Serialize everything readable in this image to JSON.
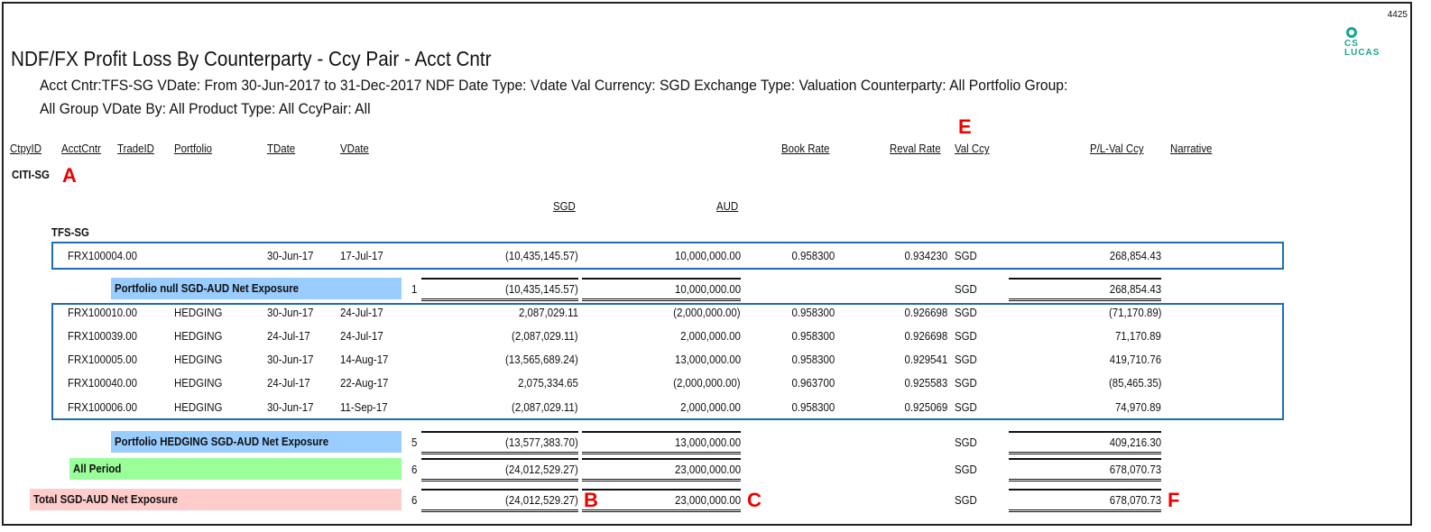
{
  "page_number": "4425",
  "logo": {
    "line1": "CS",
    "line2": "LUCAS",
    "color": "#1aa58f"
  },
  "title": "NDF/FX Profit Loss By Counterparty - Ccy Pair - Acct Cntr",
  "criteria": [
    "Acct Cntr:TFS-SG VDate: From  30-Jun-2017 to  31-Dec-2017  NDF Date Type: Vdate Val Currency: SGD Exchange Type: Valuation Counterparty: All Portfolio Group:",
    "All Group VDate By: All Product Type: All CcyPair: All"
  ],
  "headers": {
    "ctpy": "CtpyID",
    "acct": "AcctCntr",
    "trade": "TradeID",
    "portfolio": "Portfolio",
    "tdate": "TDate",
    "vdate": "VDate",
    "book": "Book Rate",
    "reval": "Reval Rate",
    "valccy": "Val Ccy",
    "pl": "P/L-Val Ccy",
    "narr": "Narrative"
  },
  "counterparty": "CITI-SG",
  "ccy1": "SGD",
  "ccy2": "AUD",
  "acct_cntr": "TFS-SG",
  "markers": {
    "a": "A",
    "b": "B",
    "c": "C",
    "e": "E",
    "f": "F"
  },
  "rows": [
    {
      "trade": "FRX100004.00",
      "portfolio": "",
      "tdate": "30-Jun-17",
      "vdate": "17-Jul-17",
      "sgd": "(10,435,145.57)",
      "aud": "10,000,000.00",
      "book": "0.958300",
      "reval": "0.934230",
      "ccy": "SGD",
      "pl": "268,854.43"
    },
    {
      "trade": "FRX100010.00",
      "portfolio": "HEDGING",
      "tdate": "30-Jun-17",
      "vdate": "24-Jul-17",
      "sgd": "2,087,029.11",
      "aud": "(2,000,000.00)",
      "book": "0.958300",
      "reval": "0.926698",
      "ccy": "SGD",
      "pl": "(71,170.89)"
    },
    {
      "trade": "FRX100039.00",
      "portfolio": "HEDGING",
      "tdate": "24-Jul-17",
      "vdate": "24-Jul-17",
      "sgd": "(2,087,029.11)",
      "aud": "2,000,000.00",
      "book": "0.958300",
      "reval": "0.926698",
      "ccy": "SGD",
      "pl": "71,170.89"
    },
    {
      "trade": "FRX100005.00",
      "portfolio": "HEDGING",
      "tdate": "30-Jun-17",
      "vdate": "14-Aug-17",
      "sgd": "(13,565,689.24)",
      "aud": "13,000,000.00",
      "book": "0.958300",
      "reval": "0.929541",
      "ccy": "SGD",
      "pl": "419,710.76"
    },
    {
      "trade": "FRX100040.00",
      "portfolio": "HEDGING",
      "tdate": "24-Jul-17",
      "vdate": "22-Aug-17",
      "sgd": "2,075,334.65",
      "aud": "(2,000,000.00)",
      "book": "0.963700",
      "reval": "0.925583",
      "ccy": "SGD",
      "pl": "(85,465.35)"
    },
    {
      "trade": "FRX100006.00",
      "portfolio": "HEDGING",
      "tdate": "30-Jun-17",
      "vdate": "11-Sep-17",
      "sgd": "(2,087,029.11)",
      "aud": "2,000,000.00",
      "book": "0.958300",
      "reval": "0.925069",
      "ccy": "SGD",
      "pl": "74,970.89"
    }
  ],
  "subtotals": [
    {
      "label": "Portfolio null SGD-AUD Net Exposure",
      "count": "1",
      "sgd": "(10,435,145.57)",
      "aud": "10,000,000.00",
      "ccy": "SGD",
      "pl": "268,854.43",
      "color": "#99ccff"
    },
    {
      "label": "Portfolio HEDGING SGD-AUD Net Exposure",
      "count": "5",
      "sgd": "(13,577,383.70)",
      "aud": "13,000,000.00",
      "ccy": "SGD",
      "pl": "409,216.30",
      "color": "#99ccff"
    },
    {
      "label": "All Period",
      "count": "6",
      "sgd": "(24,012,529.27)",
      "aud": "23,000,000.00",
      "ccy": "SGD",
      "pl": "678,070.73",
      "color": "#99ff99"
    },
    {
      "label": "Total SGD-AUD Net Exposure",
      "count": "6",
      "sgd": "(24,012,529.27)",
      "aud": "23,000,000.00",
      "ccy": "SGD",
      "pl": "678,070.73",
      "color": "#ffcccc"
    }
  ]
}
